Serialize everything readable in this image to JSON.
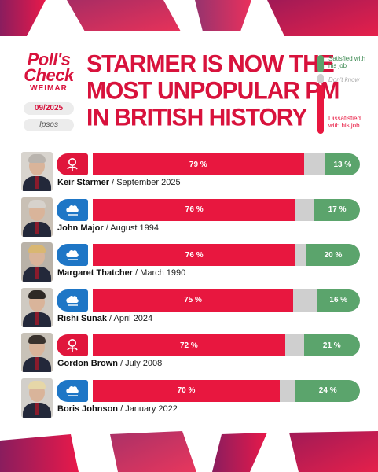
{
  "brand": {
    "logo_line1": "Poll's",
    "logo_line2": "Check",
    "subtitle": "WEIMAR",
    "date": "09/2025",
    "source": "Ipsos"
  },
  "headline": [
    "STARMER IS NOW THE",
    "MOST UNPOPULAR PM",
    "IN BRITISH HISTORY"
  ],
  "legend": {
    "satisfied": "Satisfied with his job",
    "dont_know": "Don't know",
    "dissatisfied": "Dissatisfied with his job"
  },
  "colors": {
    "accent": "#d8123c",
    "dissatisfied": "#e8173f",
    "dont_know": "#cfcfcf",
    "satisfied": "#5ba46c",
    "labour": "#e0163c",
    "conservative": "#1e76c6"
  },
  "chart_data": {
    "type": "bar",
    "orientation": "horizontal",
    "stacked": true,
    "title": "STARMER IS NOW THE MOST UNPOPULAR PM IN BRITISH HISTORY",
    "categories": [
      "Keir Starmer",
      "John Major",
      "Margaret Thatcher",
      "Rishi Sunak",
      "Gordon Brown",
      "Boris Johnson"
    ],
    "dates": [
      "/ September 2025",
      "/ August 1994",
      "/ March 1990",
      "/ April 2024",
      "/ July 2008",
      "/ January 2022"
    ],
    "parties": [
      "labour-rose-icon",
      "conservative-tree-icon",
      "conservative-tree-icon",
      "conservative-tree-icon",
      "labour-rose-icon",
      "conservative-tree-icon"
    ],
    "series": [
      {
        "name": "Dissatisfied with his job",
        "values": [
          79,
          76,
          76,
          75,
          72,
          70
        ],
        "labels": [
          "79 %",
          "76 %",
          "76 %",
          "75 %",
          "72 %",
          "70 %"
        ]
      },
      {
        "name": "Don't know",
        "values": [
          8,
          7,
          4,
          9,
          7,
          6
        ]
      },
      {
        "name": "Satisfied with his job",
        "values": [
          13,
          17,
          20,
          16,
          21,
          24
        ],
        "labels": [
          "13 %",
          "17 %",
          "20 %",
          "16 %",
          "21 %",
          "24 %"
        ]
      }
    ],
    "xlim": [
      0,
      100
    ],
    "legend_position": "top-right"
  }
}
